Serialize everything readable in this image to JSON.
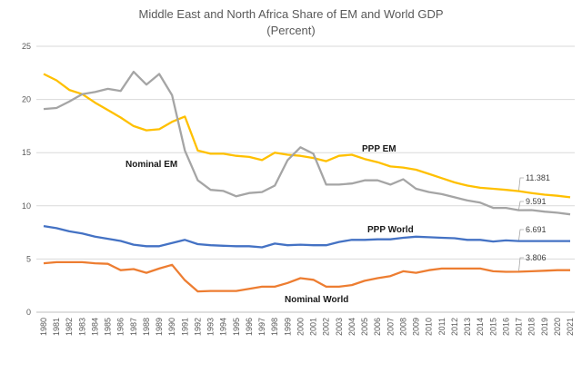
{
  "chart_data": {
    "type": "line",
    "title": "Middle East and North Africa Share of EM and World GDP",
    "subtitle": "(Percent)",
    "xlabel": "",
    "ylabel": "",
    "ylim": [
      0,
      25
    ],
    "yticks": [
      "0",
      "5",
      "10",
      "15",
      "20",
      "25"
    ],
    "grid": true,
    "legend": "none (inline series labels)",
    "x": [
      "1980",
      "1981",
      "1982",
      "1983",
      "1984",
      "1985",
      "1986",
      "1987",
      "1988",
      "1989",
      "1990",
      "1991",
      "1992",
      "1993",
      "1994",
      "1995",
      "1996",
      "1997",
      "1998",
      "1999",
      "2000",
      "2001",
      "2002",
      "2003",
      "2004",
      "2005",
      "2006",
      "2007",
      "2008",
      "2009",
      "2010",
      "2011",
      "2012",
      "2013",
      "2014",
      "2015",
      "2016",
      "2017",
      "2018",
      "2019",
      "2020",
      "2021"
    ],
    "series": [
      {
        "name": "PPP EM",
        "color": "#FFC000",
        "label_value": "11.381",
        "values": [
          22.4,
          21.8,
          20.9,
          20.5,
          19.7,
          19.0,
          18.3,
          17.5,
          17.1,
          17.2,
          17.9,
          18.4,
          15.2,
          14.9,
          14.9,
          14.7,
          14.6,
          14.3,
          15.0,
          14.8,
          14.7,
          14.5,
          14.2,
          14.7,
          14.8,
          14.4,
          14.1,
          13.7,
          13.6,
          13.4,
          13.0,
          12.6,
          12.2,
          11.9,
          11.7,
          11.6,
          11.5,
          11.381,
          11.2,
          11.05,
          10.95,
          10.8
        ]
      },
      {
        "name": "Nominal EM",
        "color": "#A5A5A5",
        "label_value": "9.591",
        "values": [
          19.1,
          19.2,
          19.8,
          20.5,
          20.7,
          21.0,
          20.8,
          22.6,
          21.4,
          22.4,
          20.4,
          15.2,
          12.4,
          11.5,
          11.4,
          10.9,
          11.2,
          11.3,
          11.9,
          14.3,
          15.5,
          14.9,
          12.0,
          12.0,
          12.1,
          12.4,
          12.4,
          12.0,
          12.5,
          11.6,
          11.3,
          11.1,
          10.8,
          10.5,
          10.3,
          9.8,
          9.8,
          9.591,
          9.6,
          9.45,
          9.35,
          9.2
        ]
      },
      {
        "name": "PPP  World",
        "color": "#4472C4",
        "label_value": "6.691",
        "values": [
          8.1,
          7.9,
          7.6,
          7.4,
          7.1,
          6.9,
          6.7,
          6.35,
          6.2,
          6.2,
          6.5,
          6.8,
          6.4,
          6.3,
          6.25,
          6.2,
          6.2,
          6.1,
          6.45,
          6.3,
          6.35,
          6.3,
          6.3,
          6.6,
          6.8,
          6.8,
          6.85,
          6.85,
          7.0,
          7.1,
          7.05,
          7.0,
          6.95,
          6.8,
          6.8,
          6.65,
          6.75,
          6.691,
          6.69,
          6.69,
          6.69,
          6.69
        ]
      },
      {
        "name": "Nominal World",
        "color": "#ED7D31",
        "label_value": "3.806",
        "values": [
          4.6,
          4.7,
          4.7,
          4.7,
          4.6,
          4.55,
          3.95,
          4.05,
          3.7,
          4.1,
          4.45,
          3.0,
          1.95,
          2.0,
          2.0,
          2.0,
          2.2,
          2.4,
          2.4,
          2.75,
          3.2,
          3.05,
          2.4,
          2.4,
          2.55,
          2.95,
          3.2,
          3.4,
          3.85,
          3.7,
          3.95,
          4.1,
          4.1,
          4.1,
          4.1,
          3.85,
          3.8,
          3.806,
          3.85,
          3.9,
          3.95,
          3.95
        ]
      }
    ],
    "data_label_year": "2017"
  }
}
